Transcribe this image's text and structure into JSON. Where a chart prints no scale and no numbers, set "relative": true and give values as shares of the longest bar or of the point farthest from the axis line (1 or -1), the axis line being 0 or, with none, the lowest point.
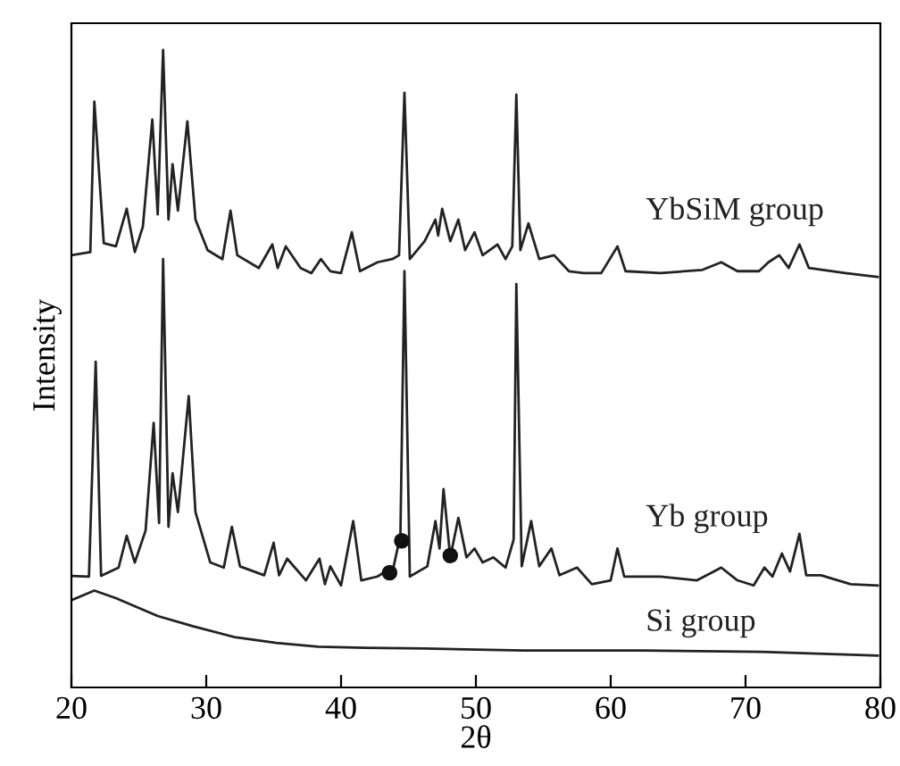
{
  "chart_data": {
    "type": "line",
    "relative": true,
    "xlabel": "2θ",
    "ylabel": "Intensity",
    "xlim": [
      20,
      80
    ],
    "xticks": [
      20,
      30,
      40,
      50,
      60,
      70,
      80
    ],
    "grid": false,
    "legend": false,
    "marker": "none",
    "line_style": "solid",
    "series": [
      {
        "name": "YbSiM group",
        "color": "#222222",
        "x": [
          20,
          21.4,
          21.7,
          22.4,
          23.3,
          24.1,
          24.7,
          25.3,
          26.0,
          26.4,
          26.8,
          27.2,
          27.5,
          27.9,
          28.6,
          29.2,
          30.1,
          31.2,
          31.8,
          32.3,
          33.9,
          34.9,
          35.3,
          35.9,
          37.0,
          37.8,
          38.5,
          39.2,
          40.0,
          40.8,
          41.4,
          42.7,
          43.8,
          44.3,
          44.7,
          45.1,
          46.2,
          47.0,
          47.2,
          47.5,
          48.1,
          48.7,
          49.2,
          49.9,
          50.5,
          51.6,
          52.2,
          52.7,
          53.0,
          53.3,
          53.9,
          54.7,
          55.8,
          56.9,
          58.0,
          59.3,
          60.5,
          61.1,
          63.7,
          66.8,
          68.2,
          69.4,
          71.0,
          71.7,
          72.5,
          73.2,
          74.0,
          74.7,
          77.4,
          79.8
        ],
        "values": [
          0.678,
          0.683,
          0.919,
          0.697,
          0.692,
          0.751,
          0.683,
          0.723,
          0.891,
          0.742,
          1.0,
          0.734,
          0.821,
          0.748,
          0.888,
          0.734,
          0.686,
          0.672,
          0.748,
          0.678,
          0.658,
          0.695,
          0.658,
          0.692,
          0.658,
          0.65,
          0.672,
          0.653,
          0.65,
          0.714,
          0.653,
          0.667,
          0.672,
          0.678,
          0.933,
          0.672,
          0.7,
          0.734,
          0.709,
          0.751,
          0.7,
          0.734,
          0.686,
          0.714,
          0.678,
          0.695,
          0.672,
          0.692,
          0.93,
          0.686,
          0.728,
          0.672,
          0.678,
          0.653,
          0.65,
          0.65,
          0.692,
          0.653,
          0.65,
          0.655,
          0.667,
          0.653,
          0.653,
          0.667,
          0.678,
          0.658,
          0.695,
          0.658,
          0.65,
          0.644
        ]
      },
      {
        "name": "Yb group",
        "color": "#222222",
        "x": [
          20,
          21.3,
          21.8,
          22.2,
          23.5,
          24.1,
          24.7,
          25.5,
          26.1,
          26.5,
          26.8,
          27.2,
          27.5,
          27.9,
          28.7,
          29.2,
          30.3,
          31.3,
          31.9,
          32.5,
          34.3,
          35.0,
          35.4,
          36.0,
          37.4,
          38.4,
          38.8,
          39.2,
          40.0,
          40.9,
          41.5,
          42.7,
          43.9,
          44.4,
          44.7,
          45.1,
          46.4,
          47.0,
          47.3,
          47.6,
          48.1,
          48.7,
          49.3,
          49.9,
          50.5,
          51.3,
          52.2,
          52.8,
          53.0,
          53.4,
          54.1,
          54.7,
          55.6,
          56.2,
          57.5,
          58.6,
          60.0,
          60.5,
          61.0,
          63.7,
          66.4,
          68.2,
          69.4,
          70.6,
          71.4,
          72.0,
          72.7,
          73.3,
          74.0,
          74.5,
          75.6,
          77.8,
          79.8
        ],
        "values": [
          0.175,
          0.174,
          0.511,
          0.175,
          0.188,
          0.238,
          0.196,
          0.246,
          0.415,
          0.258,
          0.672,
          0.252,
          0.336,
          0.275,
          0.457,
          0.275,
          0.196,
          0.188,
          0.252,
          0.19,
          0.176,
          0.227,
          0.176,
          0.202,
          0.168,
          0.202,
          0.162,
          0.19,
          0.16,
          0.261,
          0.168,
          0.174,
          0.19,
          0.238,
          0.653,
          0.174,
          0.19,
          0.261,
          0.218,
          0.311,
          0.204,
          0.266,
          0.204,
          0.218,
          0.196,
          0.204,
          0.188,
          0.232,
          0.633,
          0.19,
          0.261,
          0.19,
          0.218,
          0.176,
          0.188,
          0.162,
          0.168,
          0.218,
          0.174,
          0.174,
          0.168,
          0.188,
          0.168,
          0.16,
          0.188,
          0.174,
          0.21,
          0.182,
          0.241,
          0.176,
          0.176,
          0.162,
          0.16
        ]
      },
      {
        "name": "Si group",
        "color": "#222222",
        "x": [
          20,
          21.7,
          23.3,
          26.4,
          29.0,
          32.1,
          35.2,
          38.3,
          41.8,
          46.2,
          53.6,
          62.4,
          71.2,
          79.8
        ],
        "values": [
          0.137,
          0.152,
          0.14,
          0.112,
          0.096,
          0.079,
          0.07,
          0.064,
          0.062,
          0.061,
          0.058,
          0.058,
          0.056,
          0.05
        ]
      },
      {
        "type": "scatter",
        "color": "#111111",
        "marker": "circle",
        "x": [
          43.6,
          44.5,
          48.1
        ],
        "values": [
          0.18,
          0.23,
          0.207
        ]
      }
    ]
  }
}
